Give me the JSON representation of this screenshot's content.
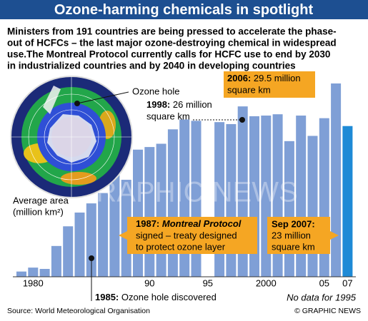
{
  "header": {
    "title": "Ozone-harming chemicals in spotlight",
    "intro": [
      "Ministers from 191 countries are being pressed to accelerate the phase-",
      "out of HCFCs – the last major ozone-destroying chemical in widespread",
      "use.The Montreal Protocol currently calls for HCFC use to end by 2030",
      "in industrialized countries and by 2040 in developing countries"
    ]
  },
  "chart_data": {
    "type": "bar",
    "categories": [
      null,
      "1980",
      null,
      null,
      null,
      null,
      null,
      null,
      null,
      null,
      null,
      "90",
      null,
      null,
      null,
      null,
      "95",
      null,
      null,
      null,
      null,
      "2000",
      null,
      null,
      null,
      null,
      "05",
      null,
      "07"
    ],
    "values": [
      0.8,
      1.4,
      1.2,
      4.7,
      7.7,
      9.8,
      11.2,
      12.8,
      17.4,
      14.8,
      19.4,
      19.8,
      20.3,
      22.5,
      24.0,
      23.8,
      null,
      23.6,
      23.3,
      26,
      24.5,
      24.6,
      24.8,
      20.7,
      24.6,
      21.5,
      24.2,
      29.5,
      23
    ],
    "colors": [
      "#7f9fd6",
      "#7f9fd6",
      "#7f9fd6",
      "#7f9fd6",
      "#7f9fd6",
      "#7f9fd6",
      "#7f9fd6",
      "#7f9fd6",
      "#7f9fd6",
      "#7f9fd6",
      "#7f9fd6",
      "#7f9fd6",
      "#7f9fd6",
      "#7f9fd6",
      "#7f9fd6",
      "#7f9fd6",
      "#7f9fd6",
      "#7f9fd6",
      "#7f9fd6",
      "#7f9fd6",
      "#7f9fd6",
      "#7f9fd6",
      "#7f9fd6",
      "#7f9fd6",
      "#7f9fd6",
      "#7f9fd6",
      "#7f9fd6",
      "#7f9fd6",
      "#1e8ad6"
    ],
    "y_label": [
      "Average area",
      "(million km²)"
    ],
    "note": "No data for 1995",
    "watermark": "GRAPHIC NEWS"
  },
  "annotations": {
    "ozone_hole": "Ozone hole",
    "y1998": {
      "label": "1998:",
      "lines": [
        "26 million",
        "square km"
      ]
    },
    "y2006": {
      "label": "2006:",
      "lines": [
        "29.5 million",
        "square km"
      ]
    },
    "y1987": {
      "label": "1987:",
      "name": "Montreal Protocol",
      "lines": [
        "signed – treaty designed",
        "to protect ozone layer"
      ]
    },
    "y2007": {
      "label": "Sep 2007:",
      "lines": [
        "23 million",
        "square km"
      ]
    },
    "y1985": {
      "label": "1985:",
      "text": "Ozone hole discovered"
    }
  },
  "footer": {
    "source": "Source: World Meteorological Organisation",
    "credit": "© GRAPHIC NEWS"
  }
}
